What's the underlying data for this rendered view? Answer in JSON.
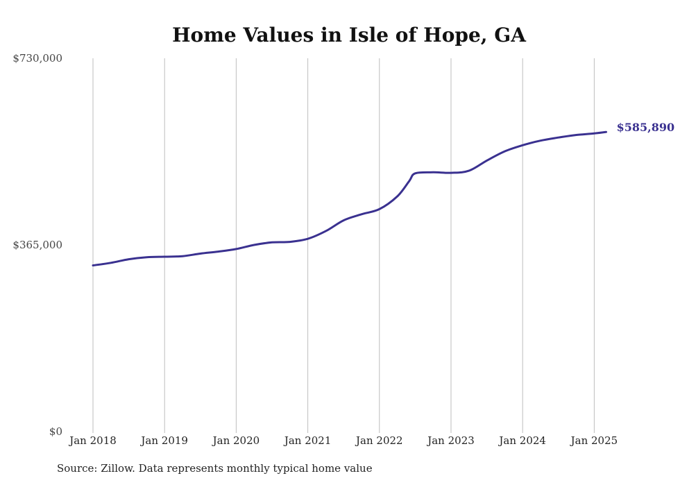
{
  "chart_data": {
    "type": "line",
    "title": "Home Values in Isle of Hope, GA",
    "xlabel": "",
    "ylabel": "",
    "ylim": [
      0,
      730000
    ],
    "yticks": [
      0,
      365000,
      730000
    ],
    "ytick_labels": [
      "$0",
      "$365,000",
      "$730,000"
    ],
    "xtick_labels": [
      "Jan 2018",
      "Jan 2019",
      "Jan 2020",
      "Jan 2021",
      "Jan 2022",
      "Jan 2023",
      "Jan 2024",
      "Jan 2025"
    ],
    "grid": "vertical",
    "line_color": "#3a3190",
    "end_label": "$585,890",
    "x": [
      "2018-01",
      "2018-04",
      "2018-07",
      "2018-10",
      "2019-01",
      "2019-04",
      "2019-07",
      "2019-10",
      "2020-01",
      "2020-04",
      "2020-07",
      "2020-10",
      "2021-01",
      "2021-04",
      "2021-07",
      "2021-10",
      "2022-01",
      "2022-04",
      "2022-06",
      "2022-07",
      "2022-10",
      "2023-01",
      "2023-04",
      "2023-07",
      "2023-10",
      "2024-01",
      "2024-04",
      "2024-07",
      "2024-10",
      "2025-01",
      "2025-03"
    ],
    "series": [
      {
        "values": [
          325000,
          330000,
          337000,
          341000,
          342000,
          343000,
          348000,
          352000,
          357000,
          365000,
          370000,
          371000,
          377000,
          392000,
          413000,
          425000,
          435000,
          460000,
          490000,
          505000,
          507000,
          506000,
          510000,
          530000,
          548000,
          560000,
          569000,
          575000,
          580000,
          583000,
          585890
        ]
      }
    ]
  },
  "source_text": "Source: Zillow. Data represents monthly typical home value"
}
